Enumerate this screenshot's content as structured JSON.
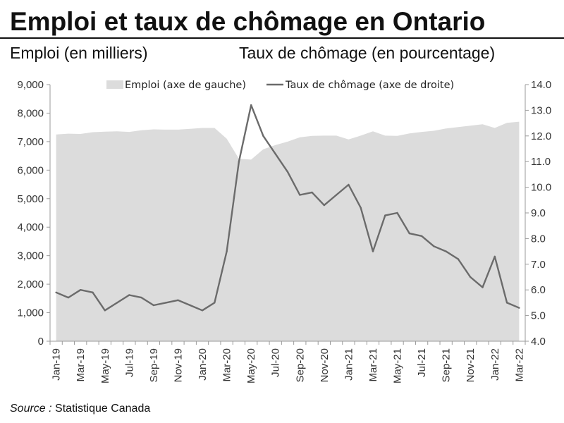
{
  "header": {
    "title": "Emploi et taux de chômage en Ontario",
    "left_axis_heading": "Emploi (en milliers)",
    "right_axis_heading": "Taux de chômage (en pourcentage)"
  },
  "source": {
    "label": "Source :",
    "text": "Statistique Canada"
  },
  "colors": {
    "area_fill": "#dcdcdc",
    "line": "#6b6b6b",
    "axis": "#9a9a9a",
    "text": "#111111"
  },
  "chart_data": {
    "type": "area+line",
    "title": "Emploi et taux de chômage en Ontario",
    "x": [
      "Jan-19",
      "Feb-19",
      "Mar-19",
      "Apr-19",
      "May-19",
      "Jun-19",
      "Jul-19",
      "Aug-19",
      "Sep-19",
      "Oct-19",
      "Nov-19",
      "Dec-19",
      "Jan-20",
      "Feb-20",
      "Mar-20",
      "Apr-20",
      "May-20",
      "Jun-20",
      "Jul-20",
      "Aug-20",
      "Sep-20",
      "Oct-20",
      "Nov-20",
      "Dec-20",
      "Jan-21",
      "Feb-21",
      "Mar-21",
      "Apr-21",
      "May-21",
      "Jun-21",
      "Jul-21",
      "Aug-21",
      "Sep-21",
      "Oct-21",
      "Nov-21",
      "Dec-21",
      "Jan-22",
      "Feb-22",
      "Mar-22"
    ],
    "x_tick_labels": [
      "Jan-19",
      "Mar-19",
      "May-19",
      "Jul-19",
      "Sep-19",
      "Nov-19",
      "Jan-20",
      "Mar-20",
      "May-20",
      "Jul-20",
      "Sep-20",
      "Nov-20",
      "Jan-21",
      "Mar-21",
      "May-21",
      "Jul-21",
      "Sep-21",
      "Nov-21",
      "Jan-22",
      "Mar-22"
    ],
    "series": [
      {
        "name": "Emploi (axe de gauche)",
        "type": "area",
        "axis": "left",
        "values": [
          7250,
          7280,
          7270,
          7330,
          7350,
          7360,
          7340,
          7400,
          7430,
          7420,
          7420,
          7450,
          7480,
          7480,
          7100,
          6400,
          6370,
          6730,
          6880,
          7000,
          7150,
          7200,
          7210,
          7210,
          7080,
          7210,
          7360,
          7210,
          7200,
          7290,
          7340,
          7380,
          7460,
          7510,
          7560,
          7610,
          7480,
          7660,
          7700
        ]
      },
      {
        "name": "Taux de chômage (axe de droite)",
        "type": "line",
        "axis": "right",
        "values": [
          5.9,
          5.7,
          6.0,
          5.9,
          5.2,
          5.5,
          5.8,
          5.7,
          5.4,
          5.5,
          5.6,
          5.4,
          5.2,
          5.5,
          7.5,
          11.0,
          13.2,
          12.0,
          11.3,
          10.6,
          9.7,
          9.8,
          9.3,
          9.7,
          10.1,
          9.2,
          7.5,
          8.9,
          9.0,
          8.2,
          8.1,
          7.7,
          7.5,
          7.2,
          6.5,
          6.1,
          7.3,
          5.5,
          5.3
        ]
      }
    ],
    "y_left": {
      "ylim": [
        0,
        9000
      ],
      "ticks": [
        "0",
        "1,000",
        "2,000",
        "3,000",
        "4,000",
        "5,000",
        "6,000",
        "7,000",
        "8,000",
        "9,000"
      ]
    },
    "y_right": {
      "ylim": [
        4.0,
        14.0
      ],
      "ticks": [
        "4.0",
        "5.0",
        "6.0",
        "7.0",
        "8.0",
        "9.0",
        "10.0",
        "11.0",
        "12.0",
        "13.0",
        "14.0"
      ]
    },
    "legend": {
      "placement": "top-center",
      "entries": [
        "Emploi (axe de gauche)",
        "Taux de chômage (axe de droite)"
      ]
    },
    "grid": false
  }
}
